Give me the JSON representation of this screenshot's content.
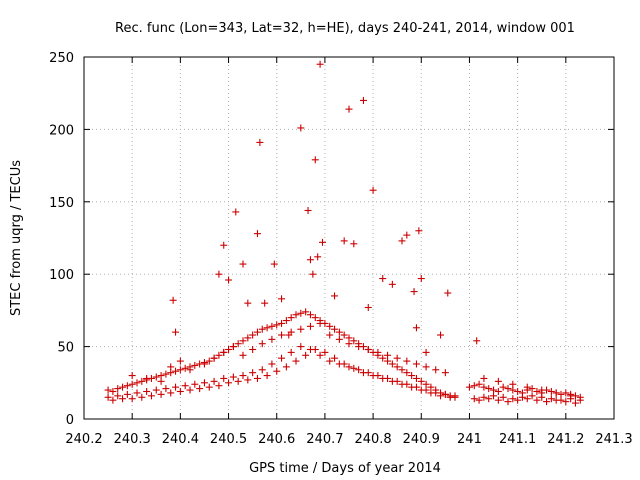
{
  "chart_data": {
    "type": "scatter",
    "title": "Rec. func (Lon=343, Lat=32, h=HE), days 240-241, 2014, window 001",
    "xlabel": "GPS time / Days of year 2014",
    "ylabel": "STEC from uqrg / TECUs",
    "xlim": [
      240.2,
      241.3
    ],
    "ylim": [
      0,
      250
    ],
    "xticks": [
      "240.2",
      "240.3",
      "240.4",
      "240.5",
      "240.6",
      "240.7",
      "240.8",
      "240.9",
      "241",
      "241.1",
      "241.2",
      "241.3"
    ],
    "yticks": [
      "0",
      "50",
      "100",
      "150",
      "200",
      "250"
    ],
    "grid": true,
    "marker": "plus",
    "color": "#cc0000",
    "series": [
      {
        "x": [
          240.25,
          240.26,
          240.27,
          240.28,
          240.29,
          240.3,
          240.31,
          240.32,
          240.33,
          240.34,
          240.35,
          240.36,
          240.37,
          240.38,
          240.39,
          240.4,
          240.41,
          240.42,
          240.43,
          240.44,
          240.45,
          240.46,
          240.47,
          240.48,
          240.49,
          240.5,
          240.51,
          240.52,
          240.53,
          240.54,
          240.55,
          240.56,
          240.57,
          240.58,
          240.59,
          240.6,
          240.61,
          240.62,
          240.63,
          240.64,
          240.65,
          240.66,
          240.67,
          240.68,
          240.69,
          240.7,
          240.71,
          240.72,
          240.73,
          240.74,
          240.75,
          240.76,
          240.77,
          240.78,
          240.79,
          240.8,
          240.81,
          240.82,
          240.83,
          240.84,
          240.85,
          240.86,
          240.87,
          240.88,
          240.89,
          240.9,
          240.91,
          240.92,
          240.93,
          240.94,
          240.95,
          240.96,
          240.97,
          241.0,
          241.01,
          241.02,
          241.03,
          241.04,
          241.05,
          241.06,
          241.07,
          241.08,
          241.09,
          241.1,
          241.11,
          241.12,
          241.13,
          241.14,
          241.15,
          241.16,
          241.17,
          241.18,
          241.19,
          241.2,
          241.21,
          241.22,
          241.23,
          240.25,
          240.27,
          240.29,
          240.31,
          240.33,
          240.35,
          240.37,
          240.39,
          240.41,
          240.43,
          240.45,
          240.47,
          240.49,
          240.51,
          240.53,
          240.55,
          240.57,
          240.59,
          240.61,
          240.63,
          240.65,
          240.67,
          240.69,
          240.71,
          240.73,
          240.75,
          240.77,
          240.79,
          240.81,
          240.83,
          240.85,
          240.87,
          240.89,
          240.91,
          240.93,
          240.95,
          240.97,
          241.01,
          241.03,
          241.05,
          241.07,
          241.09,
          241.11,
          241.13,
          241.15,
          241.17,
          241.19,
          241.21,
          241.23,
          240.26,
          240.28,
          240.3,
          240.32,
          240.34,
          240.36,
          240.38,
          240.4,
          240.42,
          240.44,
          240.46,
          240.48,
          240.5,
          240.52,
          240.54,
          240.56,
          240.58,
          240.6,
          240.62,
          240.64,
          240.66,
          240.68,
          240.7,
          240.72,
          240.74,
          240.76,
          240.78,
          240.8,
          240.82,
          240.84,
          240.86,
          240.88,
          240.9,
          240.92,
          240.94,
          240.96,
          241.02,
          241.04,
          241.06,
          241.08,
          241.1,
          241.12,
          241.14,
          241.16,
          241.18,
          241.2,
          241.22,
          240.3,
          240.33,
          240.36,
          240.38,
          240.4,
          240.42,
          240.45,
          240.47,
          240.49,
          240.51,
          240.53,
          240.55,
          240.57,
          240.59,
          240.61,
          240.63,
          240.65,
          240.67,
          240.69,
          240.71,
          240.73,
          240.75,
          240.77,
          240.79,
          240.81,
          240.83,
          240.85,
          240.87,
          240.89,
          240.91,
          240.93,
          240.95,
          241.03,
          241.06,
          241.09,
          241.12,
          241.15,
          241.18,
          241.21,
          240.385,
          240.39,
          240.48,
          240.49,
          240.5,
          240.515,
          240.53,
          240.54,
          240.56,
          240.565,
          240.575,
          240.595,
          240.61,
          240.625,
          240.65,
          240.665,
          240.67,
          240.675,
          240.68,
          240.685,
          240.69,
          240.695,
          240.72,
          240.74,
          240.75,
          240.76,
          240.78,
          240.79,
          240.8,
          240.82,
          240.84,
          240.86,
          240.87,
          240.885,
          240.89,
          240.895,
          240.9,
          240.91,
          240.94,
          240.955,
          241.015
        ],
        "y": [
          20,
          19,
          21,
          22,
          23,
          24,
          25,
          26,
          27,
          28,
          29,
          30,
          31,
          32,
          33,
          34,
          35,
          36,
          37,
          38,
          39,
          40,
          42,
          44,
          46,
          48,
          50,
          52,
          54,
          56,
          58,
          60,
          62,
          63,
          64,
          65,
          66,
          68,
          70,
          72,
          73,
          74,
          72,
          70,
          68,
          66,
          64,
          62,
          60,
          58,
          56,
          54,
          52,
          50,
          48,
          46,
          44,
          42,
          40,
          38,
          36,
          34,
          32,
          30,
          28,
          26,
          24,
          22,
          20,
          18,
          17,
          16,
          15,
          22,
          23,
          24,
          22,
          21,
          20,
          19,
          22,
          21,
          20,
          19,
          18,
          20,
          21,
          19,
          18,
          20,
          19,
          18,
          17,
          18,
          17,
          16,
          15,
          15,
          16,
          17,
          18,
          19,
          20,
          21,
          22,
          23,
          24,
          25,
          26,
          28,
          29,
          30,
          32,
          34,
          38,
          42,
          46,
          50,
          48,
          44,
          40,
          38,
          36,
          34,
          32,
          30,
          28,
          26,
          24,
          22,
          20,
          18,
          17,
          16,
          14,
          15,
          16,
          15,
          14,
          15,
          16,
          15,
          14,
          13,
          14,
          13,
          13,
          14,
          14,
          15,
          16,
          17,
          18,
          19,
          20,
          21,
          22,
          23,
          25,
          26,
          27,
          28,
          30,
          33,
          36,
          40,
          44,
          48,
          46,
          42,
          38,
          35,
          32,
          30,
          28,
          26,
          24,
          22,
          20,
          18,
          16,
          15,
          13,
          14,
          13,
          12,
          13,
          14,
          13,
          12,
          13,
          12,
          11,
          30,
          28,
          26,
          36,
          40,
          34,
          38,
          42,
          46,
          50,
          44,
          48,
          52,
          55,
          58,
          60,
          62,
          64,
          66,
          58,
          55,
          52,
          50,
          48,
          46,
          44,
          42,
          40,
          38,
          36,
          34,
          32,
          28,
          26,
          24,
          22,
          20,
          18,
          16,
          82,
          60,
          100,
          120,
          96,
          143,
          107,
          80,
          128,
          191,
          80,
          107,
          83,
          58,
          201,
          144,
          110,
          100,
          179,
          112,
          245,
          122,
          85,
          123,
          214,
          121,
          220,
          77,
          158,
          97,
          93,
          123,
          127,
          88,
          63,
          130,
          97,
          46,
          58,
          87,
          54
        ]
      }
    ]
  }
}
